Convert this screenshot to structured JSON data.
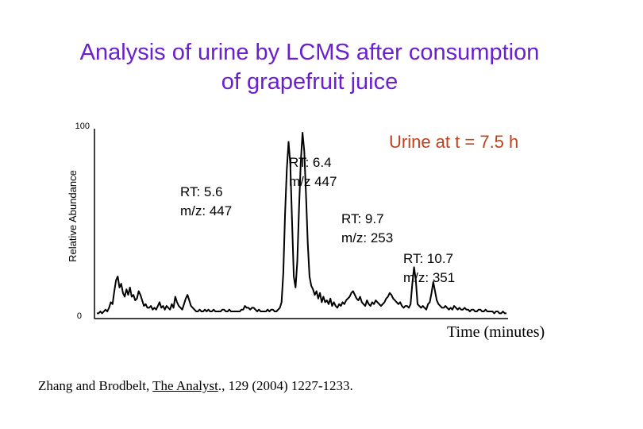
{
  "chart_data": {
    "type": "line",
    "title_line1": "Analysis of urine by LCMS after consumption",
    "title_line2": "of grapefruit juice",
    "subtitle": "Urine at  t = 7.5 h",
    "xlabel": "Time (minutes)",
    "ylabel": "Relative Abundance",
    "ylim": [
      0,
      100
    ],
    "y_ticks": [
      "100",
      "0"
    ],
    "grid": false,
    "annotations": [
      {
        "line1": "RT: 5.6",
        "line2": "m/z: 447"
      },
      {
        "line1": "RT: 6.4",
        "line2": "m/z 447"
      },
      {
        "line1": "RT: 9.7",
        "line2": "m/z: 253"
      },
      {
        "line1": "RT: 10.7",
        "line2": "m/z: 351"
      }
    ],
    "series": [
      {
        "values": [
          2,
          2,
          3,
          2,
          3,
          4,
          3,
          5,
          8,
          7,
          14,
          20,
          22,
          16,
          18,
          13,
          11,
          15,
          12,
          16,
          11,
          12,
          9,
          10,
          14,
          12,
          9,
          6,
          7,
          5,
          5,
          6,
          4,
          5,
          4,
          6,
          8,
          5,
          6,
          4,
          6,
          5,
          4,
          7,
          5,
          11,
          8,
          6,
          5,
          4,
          7,
          10,
          12,
          9,
          6,
          5,
          4,
          3,
          3,
          4,
          3,
          3,
          4,
          3,
          4,
          3,
          3,
          4,
          3,
          3,
          3,
          3,
          4,
          4,
          3,
          3,
          4,
          3,
          3,
          3,
          3,
          3,
          3,
          4,
          4,
          6,
          5,
          5,
          4,
          5,
          5,
          4,
          3,
          4,
          3,
          3,
          3,
          3,
          4,
          3,
          4,
          4,
          3,
          3,
          4,
          5,
          8,
          24,
          56,
          80,
          95,
          83,
          52,
          22,
          16,
          30,
          59,
          84,
          100,
          90,
          66,
          40,
          22,
          17,
          15,
          12,
          14,
          10,
          13,
          8,
          11,
          8,
          9,
          7,
          10,
          6,
          8,
          6,
          5,
          7,
          6,
          8,
          7,
          9,
          10,
          11,
          13,
          14,
          12,
          10,
          9,
          11,
          8,
          7,
          6,
          9,
          7,
          6,
          8,
          7,
          9,
          8,
          7,
          6,
          7,
          8,
          10,
          11,
          13,
          12,
          10,
          9,
          8,
          7,
          8,
          6,
          5,
          6,
          6,
          5,
          7,
          18,
          27,
          20,
          7,
          6,
          5,
          6,
          5,
          4,
          7,
          8,
          13,
          19,
          14,
          9,
          7,
          6,
          5,
          5,
          6,
          5,
          4,
          5,
          4,
          6,
          5,
          4,
          5,
          4,
          4,
          5,
          4,
          4,
          3,
          4,
          4,
          3,
          3,
          4,
          4,
          3,
          3,
          4,
          3,
          3,
          3,
          3,
          2,
          3,
          3,
          2,
          2,
          3,
          2,
          2
        ]
      }
    ]
  },
  "citation": {
    "authors": "Zhang and Brodbelt,",
    "journal": "The Analyst",
    "details": "., 129 (2004) 1227-1233."
  }
}
